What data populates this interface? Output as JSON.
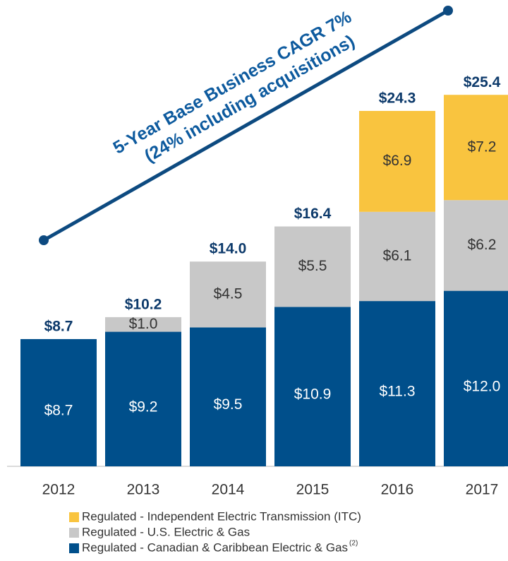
{
  "chart_data": {
    "type": "stacked_bar",
    "categories": [
      "2012",
      "2013",
      "2014",
      "2015",
      "2016",
      "2017"
    ],
    "series": [
      {
        "name": "Regulated - Canadian & Caribbean Electric & Gas",
        "color": "#004f8b",
        "values": [
          8.7,
          9.2,
          9.5,
          10.9,
          11.3,
          12.0
        ],
        "value_labels": [
          "$8.7",
          "$9.2",
          "$9.5",
          "$10.9",
          "$11.3",
          "$12.0"
        ]
      },
      {
        "name": "Regulated - U.S. Electric & Gas",
        "color": "#c8c8c8",
        "values": [
          null,
          1.0,
          4.5,
          5.5,
          6.1,
          6.2
        ],
        "value_labels": [
          null,
          "$1.0",
          "$4.5",
          "$5.5",
          "$6.1",
          "$6.2"
        ]
      },
      {
        "name": "Regulated - Independent Electric Transmission (ITC)",
        "color": "#f9c43f",
        "values": [
          null,
          null,
          null,
          null,
          6.9,
          7.2
        ],
        "value_labels": [
          null,
          null,
          null,
          null,
          "$6.9",
          "$7.2"
        ]
      }
    ],
    "legend_note": "(2)",
    "totals": [
      8.7,
      10.2,
      14.0,
      16.4,
      24.3,
      25.4
    ],
    "total_labels": [
      "$8.7",
      "$10.2",
      "$14.0",
      "$16.4",
      "$24.3",
      "$25.4"
    ],
    "annotation": [
      "5-Year Base Business CAGR 7%",
      "(24% including acquisitions)"
    ]
  }
}
